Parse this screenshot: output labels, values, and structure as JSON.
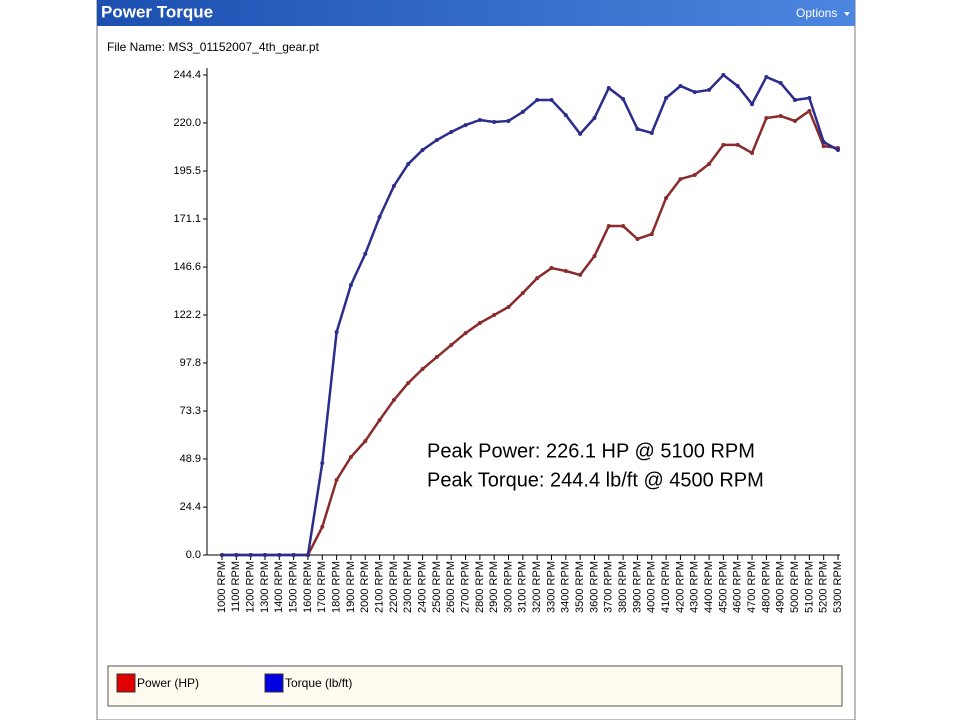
{
  "window": {
    "title": "Power Torque",
    "menu": "Options",
    "file_label": "File Name: MS3_01152007_4th_gear.pt"
  },
  "chart_data": {
    "type": "line",
    "annotations": [
      "Peak Power: 226.1 HP @ 5100 RPM",
      "Peak Torque: 244.4 lb/ft @ 4500 RPM"
    ],
    "categories": [
      "1000 RPM",
      "1100 RPM",
      "1200 RPM",
      "1300 RPM",
      "1400 RPM",
      "1500 RPM",
      "1600 RPM",
      "1700 RPM",
      "1800 RPM",
      "1900 RPM",
      "2000 RPM",
      "2100 RPM",
      "2200 RPM",
      "2300 RPM",
      "2400 RPM",
      "2500 RPM",
      "2600 RPM",
      "2700 RPM",
      "2800 RPM",
      "2900 RPM",
      "3000 RPM",
      "3100 RPM",
      "3200 RPM",
      "3300 RPM",
      "3400 RPM",
      "3500 RPM",
      "3600 RPM",
      "3700 RPM",
      "3800 RPM",
      "3900 RPM",
      "4000 RPM",
      "4100 RPM",
      "4200 RPM",
      "4300 RPM",
      "4400 RPM",
      "4500 RPM",
      "4600 RPM",
      "4700 RPM",
      "4800 RPM",
      "4900 RPM",
      "5000 RPM",
      "5100 RPM",
      "5200 RPM",
      "5300 RPM"
    ],
    "series": [
      {
        "name": "Power (HP)",
        "color": "#8b2c2c",
        "legend_color": "#e00000",
        "values": [
          0,
          0,
          0,
          0,
          0,
          0,
          0,
          14.3,
          38.2,
          49.9,
          58.0,
          68.7,
          78.9,
          87.6,
          94.7,
          100.8,
          106.9,
          113.0,
          118.1,
          122.2,
          126.3,
          133.4,
          141.0,
          146.1,
          144.6,
          142.6,
          152.2,
          167.5,
          167.5,
          160.9,
          163.4,
          181.8,
          191.4,
          193.5,
          199.1,
          208.8,
          208.8,
          204.7,
          222.5,
          223.5,
          221.0,
          226.1,
          208.2,
          207.2
        ]
      },
      {
        "name": "Torque (lb/ft)",
        "color": "#2c2c8c",
        "legend_color": "#0000e0",
        "values": [
          0,
          0,
          0,
          0,
          0,
          0,
          0,
          46.8,
          113.5,
          137.5,
          153.3,
          172.1,
          187.9,
          199.1,
          206.2,
          211.3,
          215.4,
          218.9,
          221.5,
          220.5,
          221.0,
          225.6,
          231.7,
          231.7,
          224.0,
          214.4,
          222.5,
          237.8,
          232.2,
          216.9,
          214.9,
          232.7,
          238.8,
          235.7,
          236.8,
          244.4,
          238.8,
          229.6,
          243.4,
          240.3,
          231.7,
          232.7,
          210.3,
          206.2
        ]
      }
    ],
    "ylim": [
      0,
      244.4
    ],
    "yticks": [
      {
        "value": 0,
        "label": "0.0"
      },
      24.4,
      48.9,
      73.3,
      97.8,
      122.2,
      146.6,
      171.1,
      195.5,
      {
        "value": 220,
        "label": "220.0"
      },
      244.4
    ],
    "grid": false
  }
}
